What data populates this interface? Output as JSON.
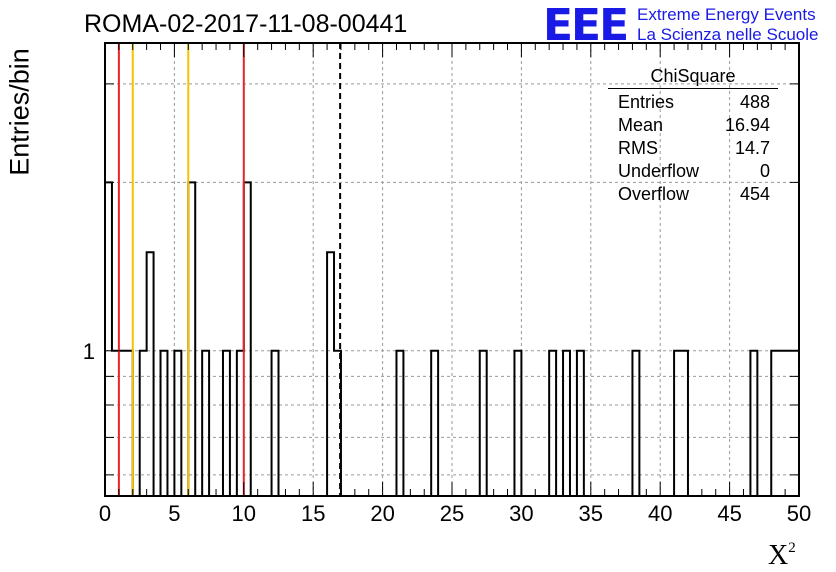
{
  "chart_data": {
    "type": "histogram",
    "title": "ROMA-02-2017-11-08-00441",
    "xlabel": "X",
    "xlabel_superscript": "2",
    "ylabel": "Entries/bin",
    "xlim": [
      0,
      50
    ],
    "ylog": true,
    "ylim": [
      0.55,
      3.55
    ],
    "grid": true,
    "bin_width": 0.5,
    "x_ticks": [
      "0",
      "5",
      "10",
      "15",
      "20",
      "25",
      "30",
      "35",
      "40",
      "45",
      "50"
    ],
    "y_ticks": [
      "1"
    ],
    "bins": [
      {
        "x": 0.0,
        "value": 2
      },
      {
        "x": 0.5,
        "value": 1
      },
      {
        "x": 1.0,
        "value": 1
      },
      {
        "x": 1.5,
        "value": 1
      },
      {
        "x": 2.5,
        "value": 1
      },
      {
        "x": 3.0,
        "value": 1.5
      },
      {
        "x": 4.0,
        "value": 1
      },
      {
        "x": 5.0,
        "value": 1
      },
      {
        "x": 6.0,
        "value": 2
      },
      {
        "x": 7.0,
        "value": 1
      },
      {
        "x": 8.5,
        "value": 1
      },
      {
        "x": 9.5,
        "value": 1
      },
      {
        "x": 10.0,
        "value": 2
      },
      {
        "x": 12.0,
        "value": 1
      },
      {
        "x": 16.0,
        "value": 1.5
      },
      {
        "x": 16.5,
        "value": 1
      },
      {
        "x": 21.0,
        "value": 1
      },
      {
        "x": 23.5,
        "value": 1
      },
      {
        "x": 27.0,
        "value": 1
      },
      {
        "x": 29.5,
        "value": 1
      },
      {
        "x": 32.0,
        "value": 1
      },
      {
        "x": 33.0,
        "value": 1
      },
      {
        "x": 34.0,
        "value": 1
      },
      {
        "x": 38.0,
        "value": 1
      },
      {
        "x": 41.0,
        "value": 1
      },
      {
        "x": 41.5,
        "value": 1
      },
      {
        "x": 46.5,
        "value": 1
      },
      {
        "x": 48.0,
        "value": 1
      },
      {
        "x": 48.5,
        "value": 1
      },
      {
        "x": 49.0,
        "value": 1
      },
      {
        "x": 49.5,
        "value": 1
      }
    ],
    "reference_lines": [
      {
        "x": 1,
        "color": "#e8232a",
        "style": "solid"
      },
      {
        "x": 2,
        "color": "#f5c400",
        "style": "solid"
      },
      {
        "x": 6,
        "color": "#f5c400",
        "style": "solid"
      },
      {
        "x": 10,
        "color": "#e8232a",
        "style": "solid"
      },
      {
        "x": 16.94,
        "color": "#000000",
        "style": "dashed"
      }
    ],
    "stats_box": {
      "title": "ChiSquare",
      "rows": [
        {
          "label": "Entries",
          "value": "488"
        },
        {
          "label": "Mean",
          "value": "16.94"
        },
        {
          "label": "RMS",
          "value": "14.7"
        },
        {
          "label": "Underflow",
          "value": "0"
        },
        {
          "label": "Overflow",
          "value": "454"
        }
      ]
    }
  },
  "logo": {
    "mark": "EEE",
    "line1": "Extreme Energy Events",
    "line2": "La Scienza nelle Scuole",
    "color": "#1a1ae6"
  }
}
